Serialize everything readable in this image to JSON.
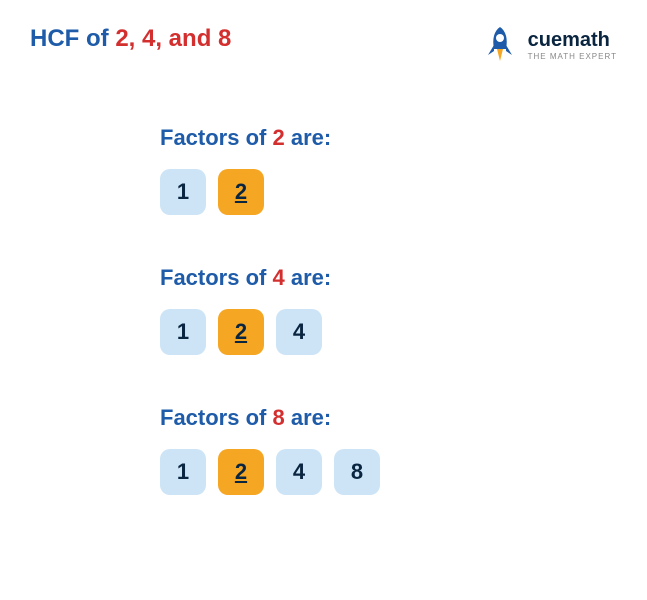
{
  "title": {
    "prefix": "HCF of ",
    "numbers": "2, 4, and 8"
  },
  "logo": {
    "brand_cue": "cue",
    "brand_math": "math",
    "tagline": "THE MATH EXPERT",
    "rocket_body_color": "#1e5ba8",
    "rocket_flame_color": "#f5a623",
    "rocket_window_color": "#ffffff"
  },
  "colors": {
    "title_color": "#1e5ba8",
    "highlight_color": "#d32f2f",
    "normal_tile_bg": "#cce4f6",
    "hcf_tile_bg": "#f5a623",
    "tile_text": "#0a2540",
    "background": "#ffffff"
  },
  "style": {
    "tile_size": 46,
    "tile_radius": 10,
    "tile_fontsize": 22,
    "title_fontsize": 24,
    "section_title_fontsize": 22,
    "section_gap": 50,
    "tile_gap": 12
  },
  "sections": [
    {
      "label_prefix": "Factors of ",
      "number": "2",
      "label_suffix": " are:",
      "factors": [
        {
          "value": "1",
          "is_hcf": false
        },
        {
          "value": "2",
          "is_hcf": true
        }
      ]
    },
    {
      "label_prefix": "Factors of ",
      "number": "4",
      "label_suffix": " are:",
      "factors": [
        {
          "value": "1",
          "is_hcf": false
        },
        {
          "value": "2",
          "is_hcf": true
        },
        {
          "value": "4",
          "is_hcf": false
        }
      ]
    },
    {
      "label_prefix": "Factors of ",
      "number": "8",
      "label_suffix": " are:",
      "factors": [
        {
          "value": "1",
          "is_hcf": false
        },
        {
          "value": "2",
          "is_hcf": true
        },
        {
          "value": "4",
          "is_hcf": false
        },
        {
          "value": "8",
          "is_hcf": false
        }
      ]
    }
  ]
}
